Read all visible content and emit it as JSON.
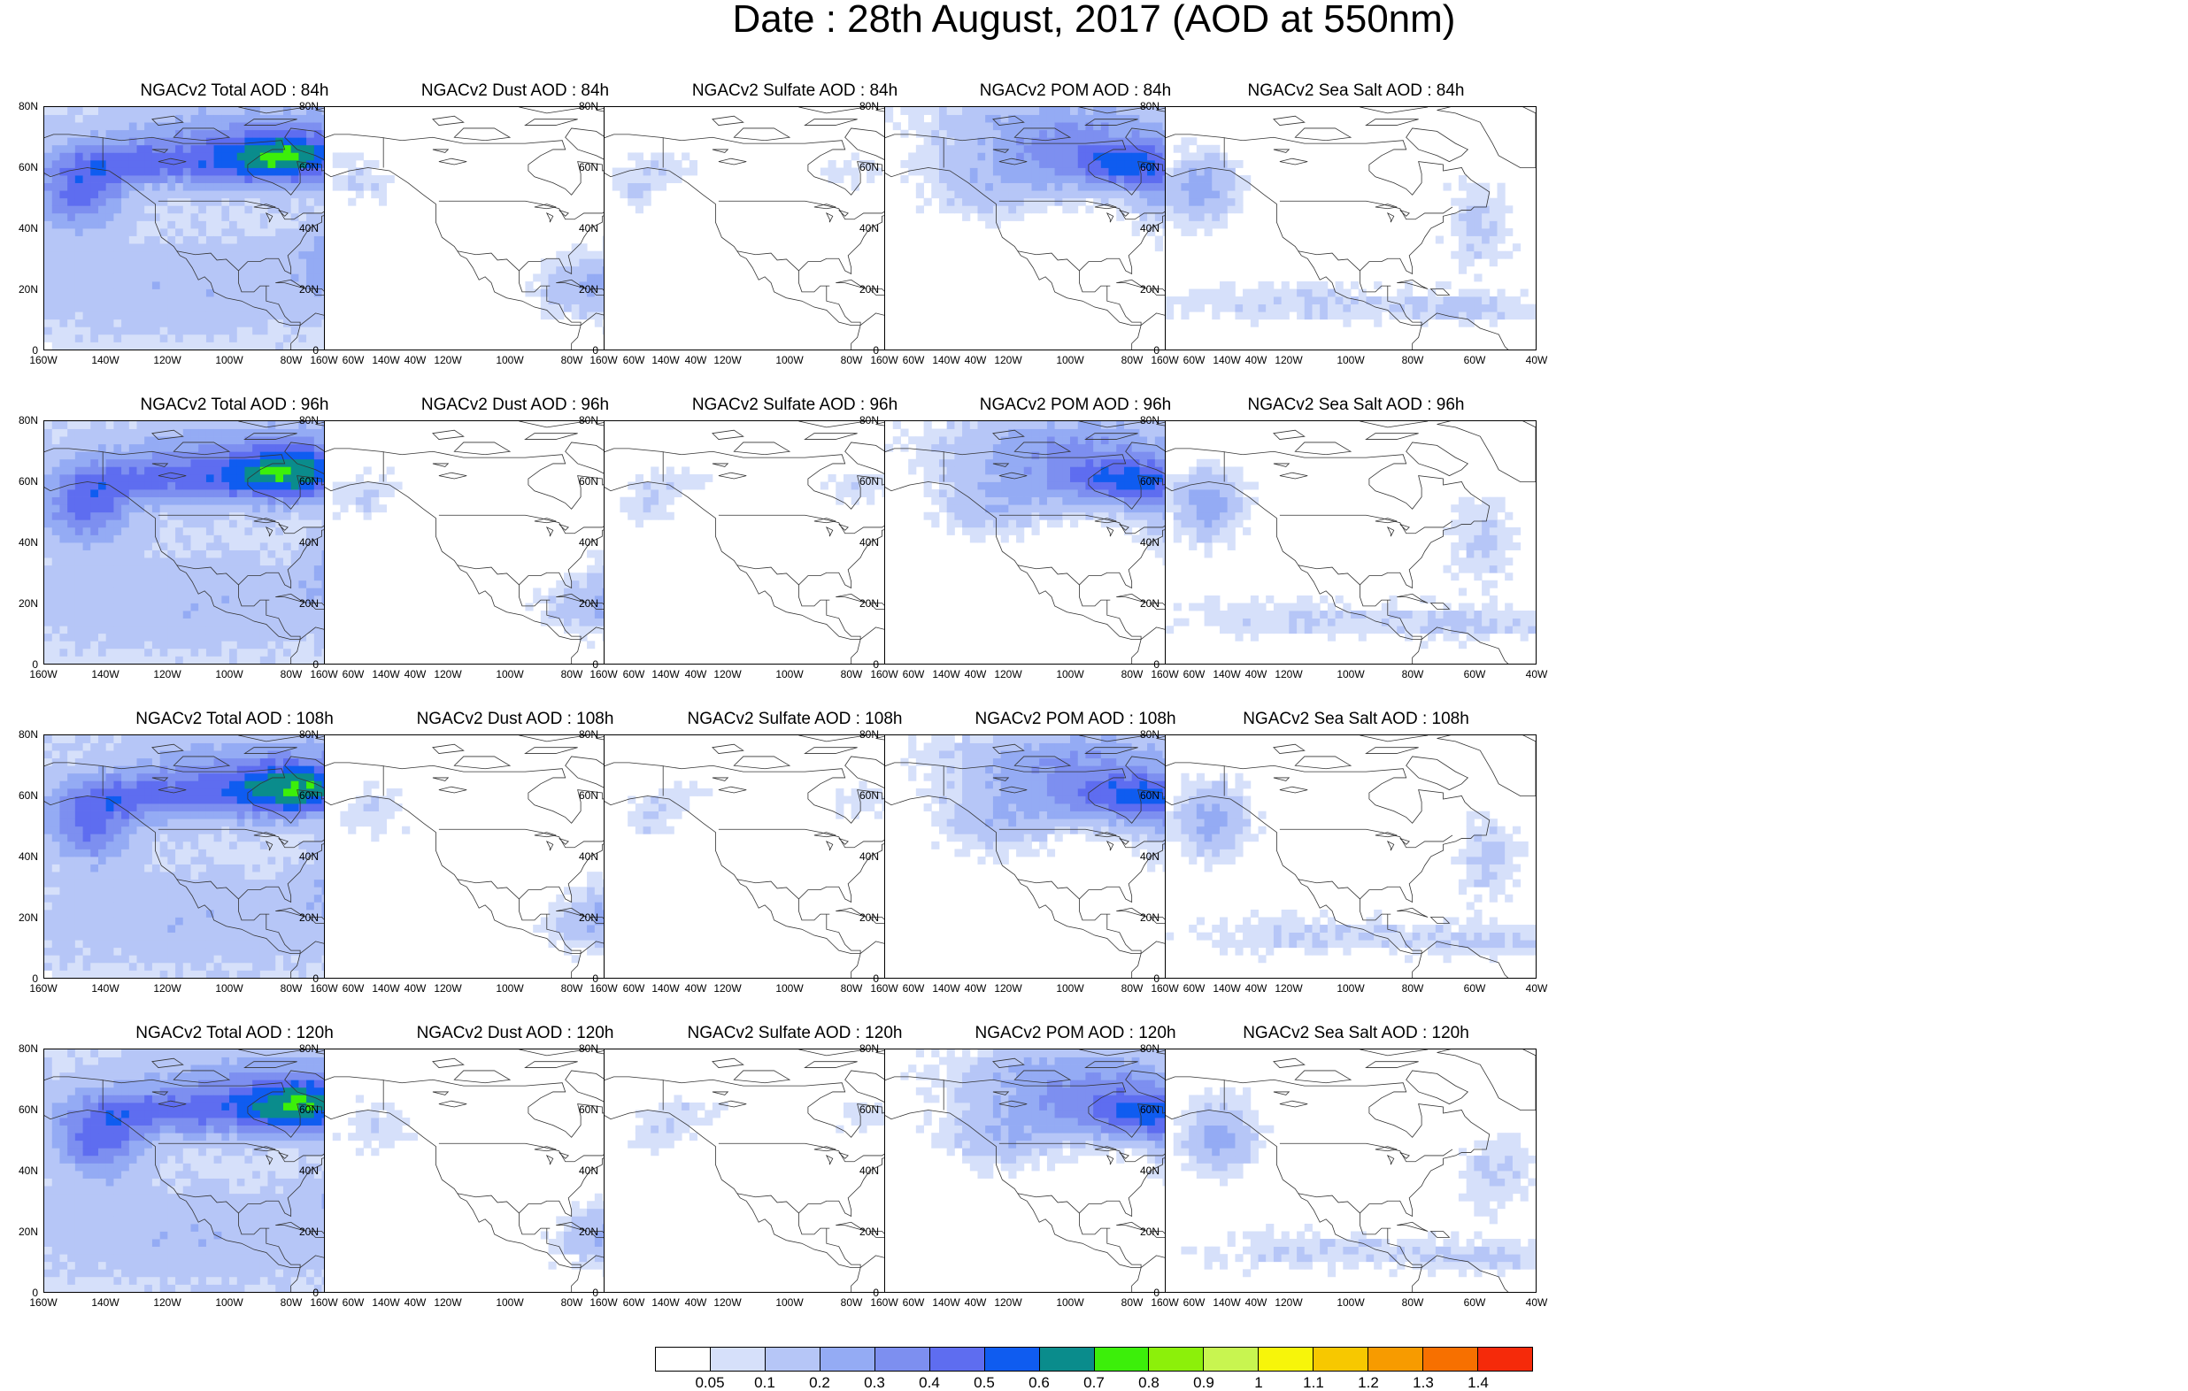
{
  "title": "Date : 28th August, 2017 (AOD at 550nm)",
  "colors": {
    "levels": [
      "#ffffff",
      "#d6e0fa",
      "#b6c6f7",
      "#94abf4",
      "#7d8ff0",
      "#5e6df0",
      "#0f5cf0",
      "#0a8c8c",
      "#3cef0a",
      "#8cf00a",
      "#c8f550",
      "#f7f50a",
      "#f7c800",
      "#f79b00",
      "#f77000",
      "#f52a0a"
    ],
    "coast": "#333333"
  },
  "axes": {
    "y_ticks": [
      "80N",
      "60N",
      "40N",
      "20N",
      "0"
    ],
    "x_ticks": [
      "160W",
      "140W",
      "120W",
      "100W",
      "80W",
      "60W",
      "40W"
    ],
    "lon_range": [
      -160,
      -40
    ],
    "lat_range": [
      0,
      80
    ]
  },
  "colorbar": {
    "labels": [
      "0.05",
      "0.1",
      "0.2",
      "0.3",
      "0.4",
      "0.5",
      "0.6",
      "0.7",
      "0.8",
      "0.9",
      "1",
      "1.1",
      "1.2",
      "1.3",
      "1.4"
    ]
  },
  "panels": [
    {
      "title": "NGACv2 Total AOD : 84h",
      "species": "total",
      "hour": 84
    },
    {
      "title": "NGACv2 Dust AOD : 84h",
      "species": "dust",
      "hour": 84
    },
    {
      "title": "NGACv2 Sulfate AOD : 84h",
      "species": "sulfate",
      "hour": 84
    },
    {
      "title": "NGACv2 POM AOD : 84h",
      "species": "pom",
      "hour": 84
    },
    {
      "title": "NGACv2 Sea Salt AOD : 84h",
      "species": "seasalt",
      "hour": 84
    },
    {
      "title": "NGACv2 Total AOD : 96h",
      "species": "total",
      "hour": 96
    },
    {
      "title": "NGACv2 Dust AOD : 96h",
      "species": "dust",
      "hour": 96
    },
    {
      "title": "NGACv2 Sulfate AOD : 96h",
      "species": "sulfate",
      "hour": 96
    },
    {
      "title": "NGACv2 POM AOD : 96h",
      "species": "pom",
      "hour": 96
    },
    {
      "title": "NGACv2 Sea Salt AOD : 96h",
      "species": "seasalt",
      "hour": 96
    },
    {
      "title": "NGACv2 Total AOD : 108h",
      "species": "total",
      "hour": 108
    },
    {
      "title": "NGACv2 Dust AOD : 108h",
      "species": "dust",
      "hour": 108
    },
    {
      "title": "NGACv2 Sulfate AOD : 108h",
      "species": "sulfate",
      "hour": 108
    },
    {
      "title": "NGACv2 POM AOD : 108h",
      "species": "pom",
      "hour": 108
    },
    {
      "title": "NGACv2 Sea Salt AOD : 108h",
      "species": "seasalt",
      "hour": 108
    },
    {
      "title": "NGACv2 Total AOD : 120h",
      "species": "total",
      "hour": 120
    },
    {
      "title": "NGACv2 Dust AOD : 120h",
      "species": "dust",
      "hour": 120
    },
    {
      "title": "NGACv2 Sulfate AOD : 120h",
      "species": "sulfate",
      "hour": 120
    },
    {
      "title": "NGACv2 POM AOD : 120h",
      "species": "pom",
      "hour": 120
    },
    {
      "title": "NGACv2 Sea Salt  AOD : 120h",
      "species": "seasalt",
      "hour": 120
    }
  ]
}
